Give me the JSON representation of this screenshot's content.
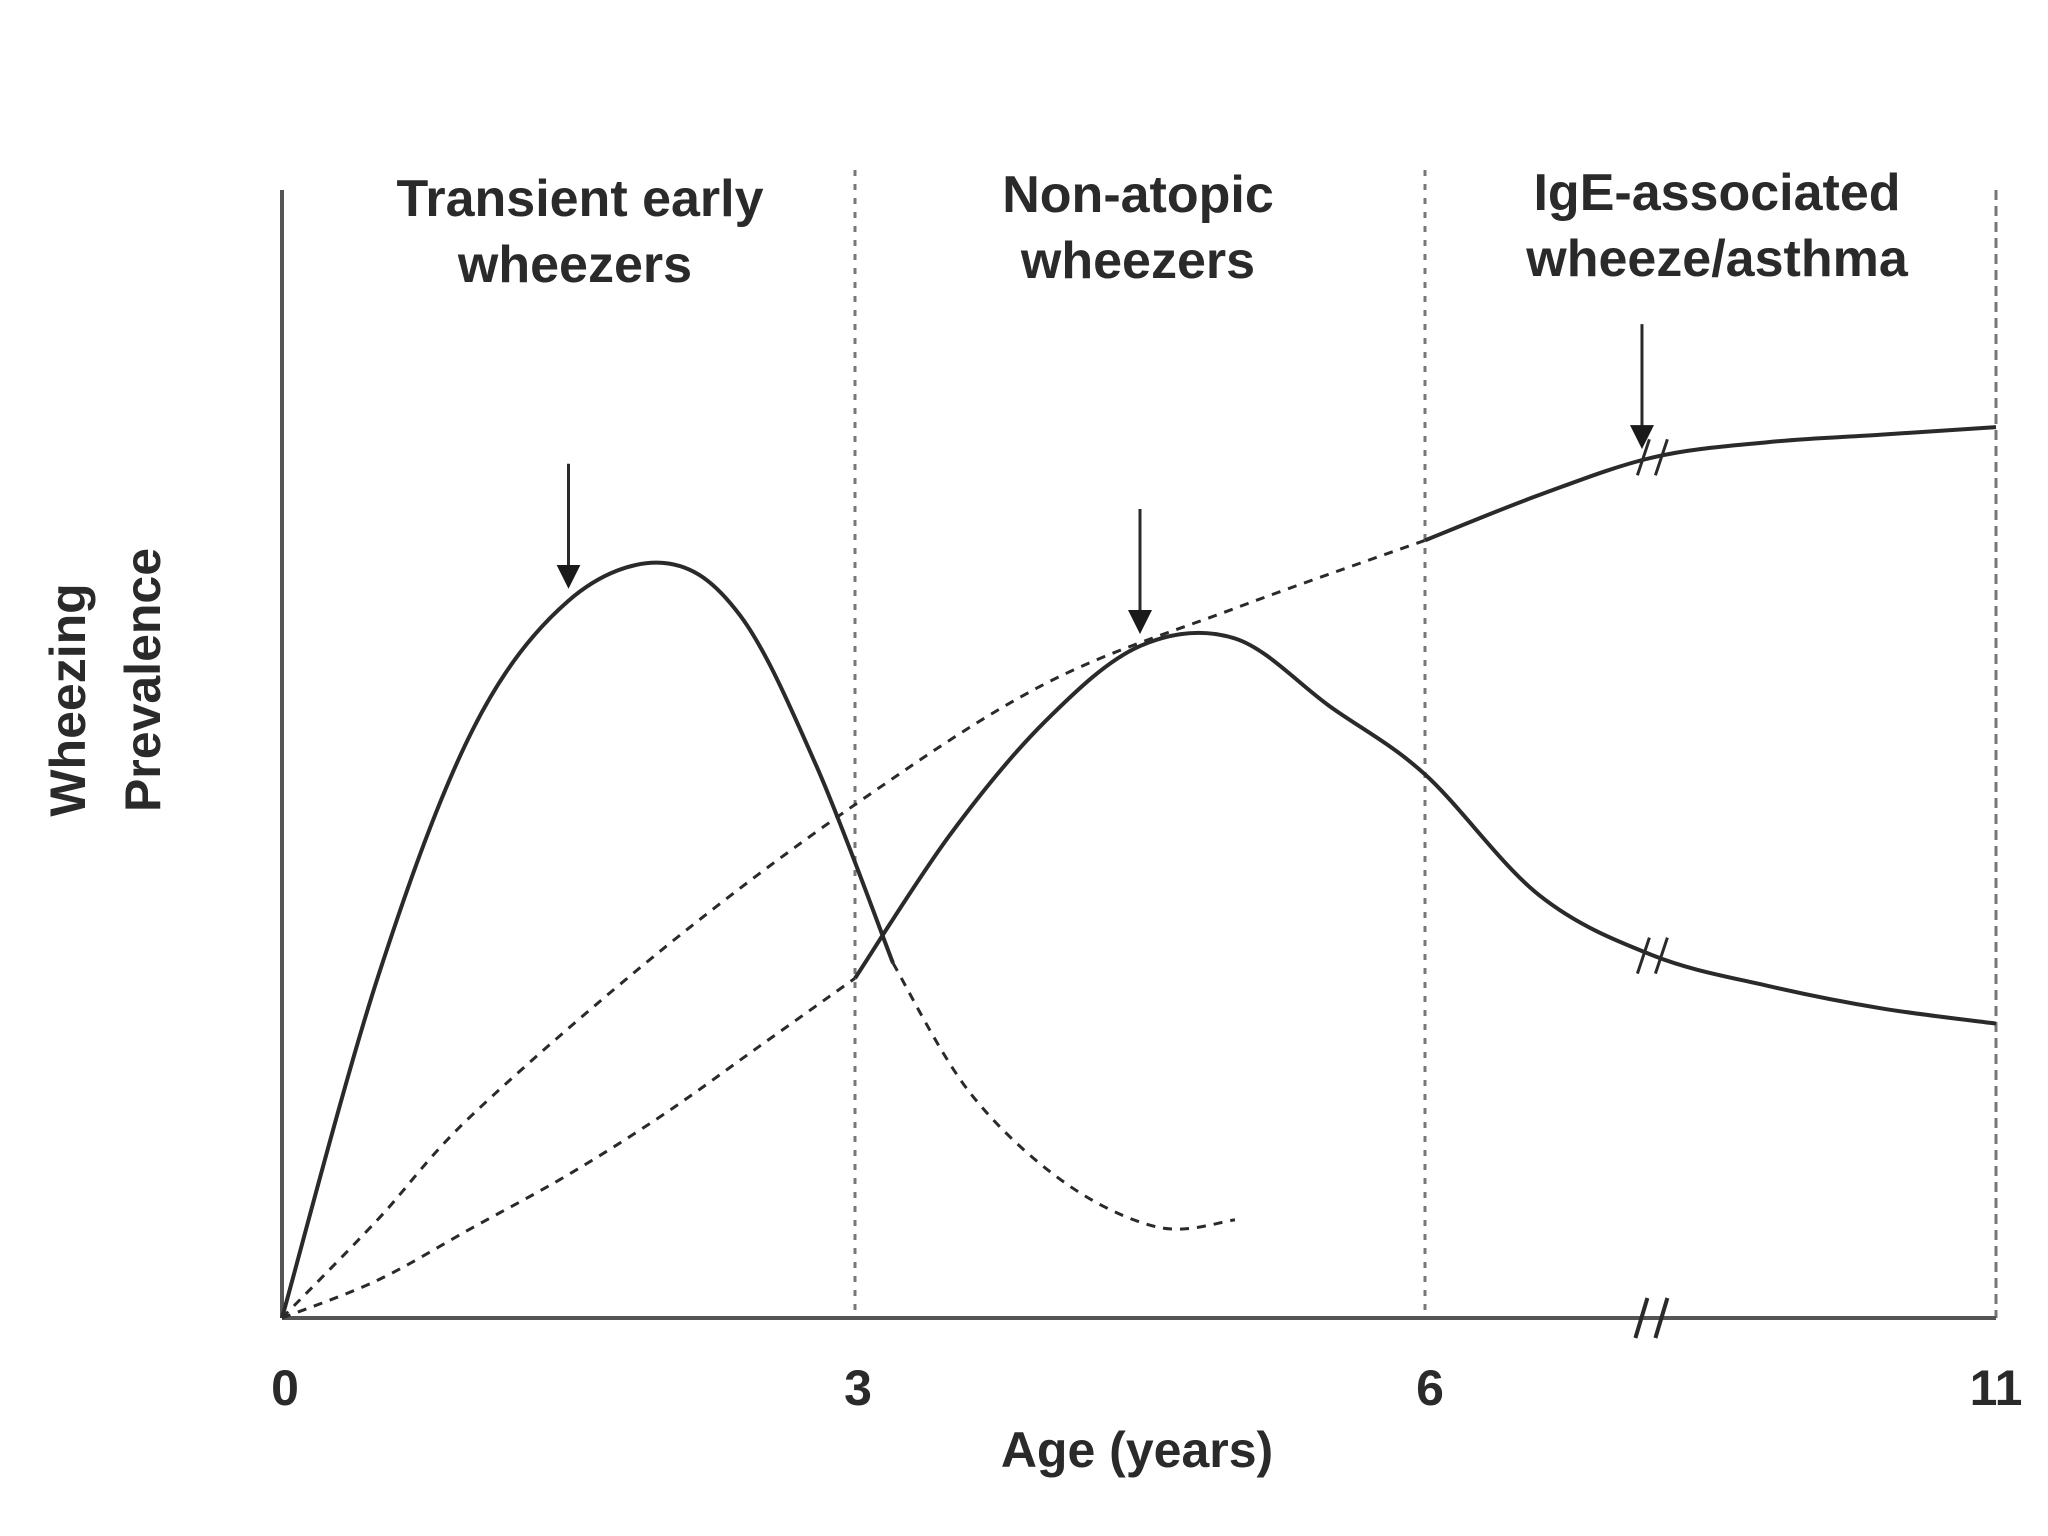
{
  "chart_data": {
    "type": "line",
    "xlabel": "Age (years)",
    "ylabel": [
      "Wheezing",
      "Prevalence"
    ],
    "x_ticks": [
      "0",
      "3",
      "6",
      "11"
    ],
    "x_tick_values": [
      0,
      3,
      6,
      11
    ],
    "x_axis_break": true,
    "ylim": [
      0,
      1
    ],
    "phases": [
      {
        "lines": [
          "Transient early",
          "wheezers"
        ],
        "x_range": [
          0,
          3
        ]
      },
      {
        "lines": [
          "Non-atopic",
          "wheezers"
        ],
        "x_range": [
          3,
          6
        ]
      },
      {
        "lines": [
          "IgE-associated",
          "wheeze/asthma"
        ],
        "x_range": [
          6,
          11
        ]
      }
    ],
    "series": [
      {
        "key": "transient",
        "style": "solid-then-dashed",
        "solid": [
          [
            0,
            0
          ],
          [
            0.5,
            0.45
          ],
          [
            1,
            0.78
          ],
          [
            1.5,
            0.95
          ],
          [
            2,
            1.0
          ],
          [
            2.4,
            0.93
          ],
          [
            2.8,
            0.73
          ],
          [
            3.2,
            0.47
          ]
        ],
        "dashed": [
          [
            3.2,
            0.47
          ],
          [
            3.6,
            0.3
          ],
          [
            4.1,
            0.18
          ],
          [
            4.6,
            0.12
          ],
          [
            5.0,
            0.13
          ]
        ],
        "arrow_x": 1.5
      },
      {
        "key": "non_atopic",
        "style": "dashed-then-solid",
        "dashed": [
          [
            0,
            0
          ],
          [
            0.5,
            0.05
          ],
          [
            1,
            0.12
          ],
          [
            1.5,
            0.19
          ],
          [
            2,
            0.27
          ],
          [
            2.5,
            0.36
          ],
          [
            3,
            0.45
          ]
        ],
        "solid": [
          [
            3,
            0.45
          ],
          [
            3.5,
            0.64
          ],
          [
            4,
            0.79
          ],
          [
            4.5,
            0.89
          ],
          [
            5,
            0.9
          ],
          [
            5.5,
            0.81
          ],
          [
            6,
            0.72
          ],
          [
            7,
            0.56
          ],
          [
            8,
            0.48
          ],
          [
            9,
            0.44
          ],
          [
            10,
            0.41
          ],
          [
            11,
            0.39
          ]
        ],
        "arrow_x": 4.5,
        "break_x": 8
      },
      {
        "key": "ige",
        "style": "dashed-then-solid",
        "dashed": [
          [
            0,
            0
          ],
          [
            0.5,
            0.13
          ],
          [
            1,
            0.27
          ],
          [
            2,
            0.49
          ],
          [
            3,
            0.68
          ],
          [
            4,
            0.84
          ],
          [
            5,
            0.94
          ],
          [
            6,
            1.03
          ]
        ],
        "solid": [
          [
            6,
            1.03
          ],
          [
            7,
            1.09
          ],
          [
            8,
            1.14
          ],
          [
            9,
            1.16
          ],
          [
            10,
            1.17
          ],
          [
            11,
            1.18
          ]
        ],
        "arrow_x": 7.9,
        "break_x": 8
      }
    ]
  },
  "colors": {
    "ink": "#2a2a2a",
    "axis": "#555555",
    "divider": "#777777"
  }
}
